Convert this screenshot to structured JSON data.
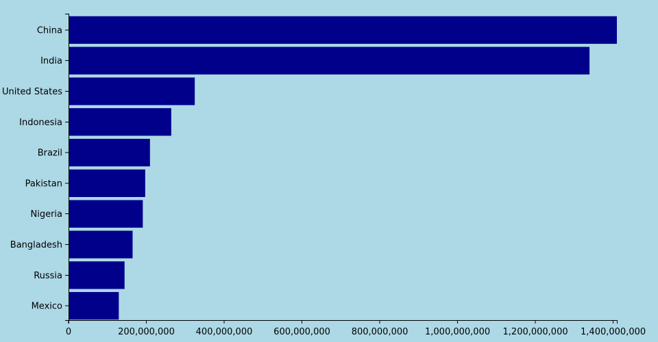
{
  "colors": {
    "background": "#add8e6",
    "bar": "#00008b",
    "axis": "#000000"
  },
  "chart_data": {
    "type": "bar",
    "orientation": "horizontal",
    "title": "",
    "xlabel": "",
    "ylabel": "",
    "categories": [
      "China",
      "India",
      "United States",
      "Indonesia",
      "Brazil",
      "Pakistan",
      "Nigeria",
      "Bangladesh",
      "Russia",
      "Mexico"
    ],
    "values": [
      1409517397,
      1339180127,
      324459463,
      263991379,
      209288278,
      197015955,
      190886311,
      164669751,
      143989754,
      129163276
    ],
    "xlim": [
      0,
      1409517397
    ],
    "x_ticks": [
      0,
      200000000,
      400000000,
      600000000,
      800000000,
      1000000000,
      1200000000,
      1400000000
    ],
    "x_tick_labels": [
      "0",
      "200,000,000",
      "400,000,000",
      "600,000,000",
      "800,000,000",
      "1,000,000,000",
      "1,200,000,000",
      "1,400,000,000"
    ],
    "grid": false,
    "legend": "none"
  }
}
